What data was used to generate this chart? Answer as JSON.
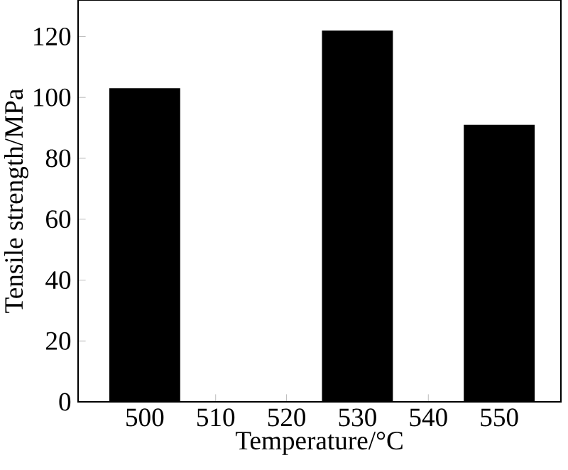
{
  "chart_data": {
    "type": "bar",
    "xlabel": "Temperature/°C",
    "ylabel": "Tensile strength/MPa",
    "x": [
      500,
      530,
      550
    ],
    "values": [
      103,
      122,
      91
    ],
    "color": "#000000",
    "xlim": [
      490.6,
      558.7
    ],
    "ylim": [
      0,
      132
    ],
    "xticks": [
      500,
      510,
      520,
      530,
      540,
      550
    ],
    "yticks": [
      0,
      20,
      40,
      60,
      80,
      100,
      120
    ]
  }
}
